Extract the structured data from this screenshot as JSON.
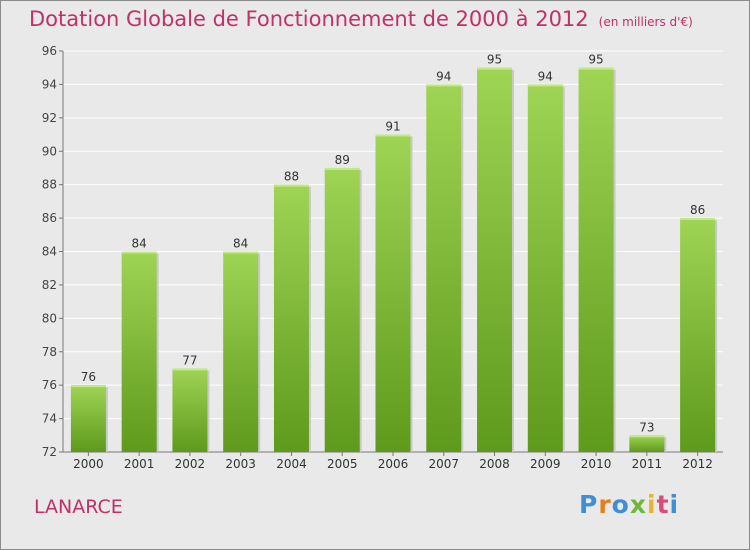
{
  "header": {
    "title": "Dotation Globale de Fonctionnement de 2000 à 2012",
    "subtitle": "(en milliers d'€)"
  },
  "footer": {
    "commune": "LANARCE",
    "logo": "Proxiti"
  },
  "colors": {
    "bar_top": "#9fd454",
    "bar_bottom": "#5e9a1c",
    "title": "#c0306a",
    "grid": "#ffffff",
    "background": "#e9e9e9"
  },
  "chart_data": {
    "type": "bar",
    "title": "Dotation Globale de Fonctionnement de 2000 à 2012",
    "subtitle": "(en milliers d'€)",
    "categories": [
      "2000",
      "2001",
      "2002",
      "2003",
      "2004",
      "2005",
      "2006",
      "2007",
      "2008",
      "2009",
      "2010",
      "2011",
      "2012"
    ],
    "values": [
      76,
      84,
      77,
      84,
      88,
      89,
      91,
      94,
      95,
      94,
      95,
      73,
      86
    ],
    "ylim": [
      72,
      96
    ],
    "yticks": [
      72,
      74,
      76,
      78,
      80,
      82,
      84,
      86,
      88,
      90,
      92,
      94,
      96
    ],
    "grid": true,
    "xlabel": "",
    "ylabel": ""
  }
}
